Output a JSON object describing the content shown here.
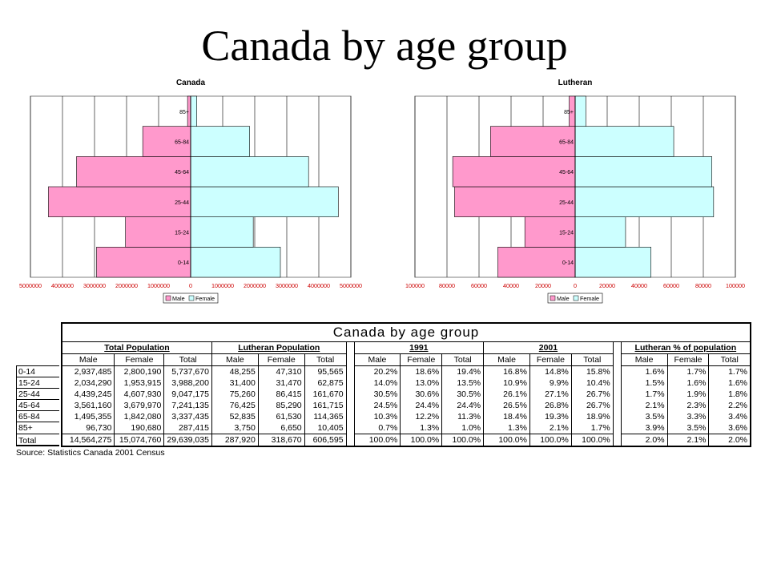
{
  "slide": {
    "title": "Canada by age group"
  },
  "chart_data": [
    {
      "type": "bar",
      "orientation": "horizontal-pyramid",
      "title": "Canada",
      "categories": [
        "0-14",
        "15-24",
        "25-44",
        "45-64",
        "65-84",
        "85+"
      ],
      "series": [
        {
          "name": "Male",
          "values": [
            2937485,
            2034290,
            4439245,
            3561160,
            1495355,
            96730
          ]
        },
        {
          "name": "Female",
          "values": [
            2800190,
            1953915,
            4607930,
            3679970,
            1842080,
            190680
          ]
        }
      ],
      "xlim": [
        -5000000,
        5000000
      ],
      "tick_labels": [
        "5000000",
        "4000000",
        "3000000",
        "2000000",
        "1000000",
        "0",
        "1000000",
        "2000000",
        "3000000",
        "4000000",
        "5000000"
      ],
      "legend": [
        "Male",
        "Female"
      ],
      "legend_position": "bottom",
      "grid": true
    },
    {
      "type": "bar",
      "orientation": "horizontal-pyramid",
      "title": "Lutheran",
      "categories": [
        "0-14",
        "15-24",
        "25-44",
        "45-64",
        "65-84",
        "85+"
      ],
      "series": [
        {
          "name": "Male",
          "values": [
            48255,
            31400,
            75260,
            76425,
            52835,
            3750
          ]
        },
        {
          "name": "Female",
          "values": [
            47310,
            31470,
            86415,
            85290,
            61530,
            6650
          ]
        }
      ],
      "xlim": [
        -100000,
        100000
      ],
      "tick_labels": [
        "100000",
        "80000",
        "60000",
        "40000",
        "20000",
        "0",
        "20000",
        "40000",
        "60000",
        "80000",
        "100000"
      ],
      "legend": [
        "Male",
        "Female"
      ],
      "legend_position": "bottom",
      "grid": true
    }
  ],
  "colors": {
    "male": "#ff99cc",
    "female": "#ccffff",
    "axis_tick_red": "#cc0000"
  },
  "table": {
    "title": "Canada by age group",
    "groups": [
      "Total Population",
      "Lutheran Population",
      "1991",
      "2001",
      "Lutheran % of population"
    ],
    "subheaders": [
      "Male",
      "Female",
      "Total"
    ],
    "rows": [
      {
        "label": "0-14",
        "cells": [
          "2,937,485",
          "2,800,190",
          "5,737,670",
          "48,255",
          "47,310",
          "95,565",
          "20.2%",
          "18.6%",
          "19.4%",
          "16.8%",
          "14.8%",
          "15.8%",
          "1.6%",
          "1.7%",
          "1.7%"
        ]
      },
      {
        "label": "15-24",
        "cells": [
          "2,034,290",
          "1,953,915",
          "3,988,200",
          "31,400",
          "31,470",
          "62,875",
          "14.0%",
          "13.0%",
          "13.5%",
          "10.9%",
          "9.9%",
          "10.4%",
          "1.5%",
          "1.6%",
          "1.6%"
        ]
      },
      {
        "label": "25-44",
        "cells": [
          "4,439,245",
          "4,607,930",
          "9,047,175",
          "75,260",
          "86,415",
          "161,670",
          "30.5%",
          "30.6%",
          "30.5%",
          "26.1%",
          "27.1%",
          "26.7%",
          "1.7%",
          "1.9%",
          "1.8%"
        ]
      },
      {
        "label": "45-64",
        "cells": [
          "3,561,160",
          "3,679,970",
          "7,241,135",
          "76,425",
          "85,290",
          "161,715",
          "24.5%",
          "24.4%",
          "24.4%",
          "26.5%",
          "26.8%",
          "26.7%",
          "2.1%",
          "2.3%",
          "2.2%"
        ]
      },
      {
        "label": "65-84",
        "cells": [
          "1,495,355",
          "1,842,080",
          "3,337,435",
          "52,835",
          "61,530",
          "114,365",
          "10.3%",
          "12.2%",
          "11.3%",
          "18.4%",
          "19.3%",
          "18.9%",
          "3.5%",
          "3.3%",
          "3.4%"
        ]
      },
      {
        "label": "85+",
        "cells": [
          "96,730",
          "190,680",
          "287,415",
          "3,750",
          "6,650",
          "10,405",
          "0.7%",
          "1.3%",
          "1.0%",
          "1.3%",
          "2.1%",
          "1.7%",
          "3.9%",
          "3.5%",
          "3.6%"
        ]
      },
      {
        "label": "Total",
        "cells": [
          "14,564,275",
          "15,074,760",
          "29,639,035",
          "287,920",
          "318,670",
          "606,595",
          "100.0%",
          "100.0%",
          "100.0%",
          "100.0%",
          "100.0%",
          "100.0%",
          "2.0%",
          "2.1%",
          "2.0%"
        ]
      }
    ],
    "source": "Source: Statistics Canada 2001 Census"
  }
}
